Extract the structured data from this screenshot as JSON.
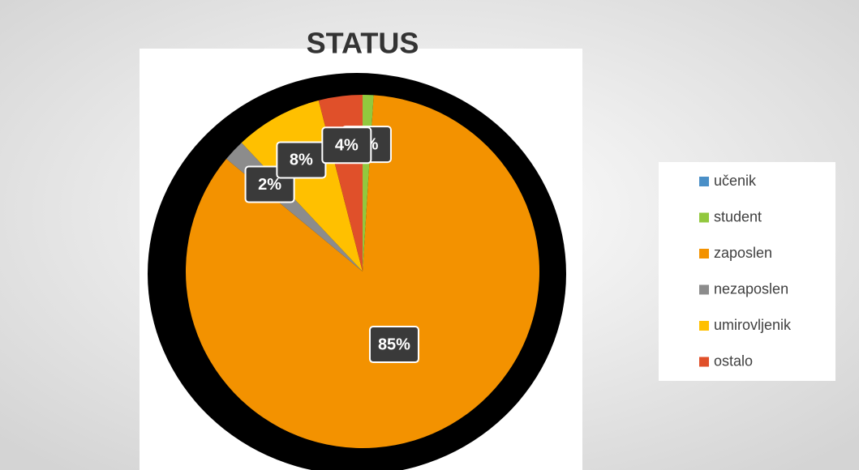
{
  "chart_data": {
    "type": "pie",
    "title": "STATUS",
    "categories": [
      "učenik",
      "student",
      "zaposlen",
      "nezaposlen",
      "umirovljenik",
      "ostalo"
    ],
    "values": [
      0,
      1,
      85,
      2,
      8,
      4
    ],
    "value_labels": [
      null,
      "1%",
      "85%",
      "2%",
      "8%",
      "4%"
    ],
    "colors": [
      "#4a8fc7",
      "#92c83e",
      "#f39200",
      "#8c8c8c",
      "#ffc000",
      "#e0502a"
    ],
    "legend": "right"
  }
}
